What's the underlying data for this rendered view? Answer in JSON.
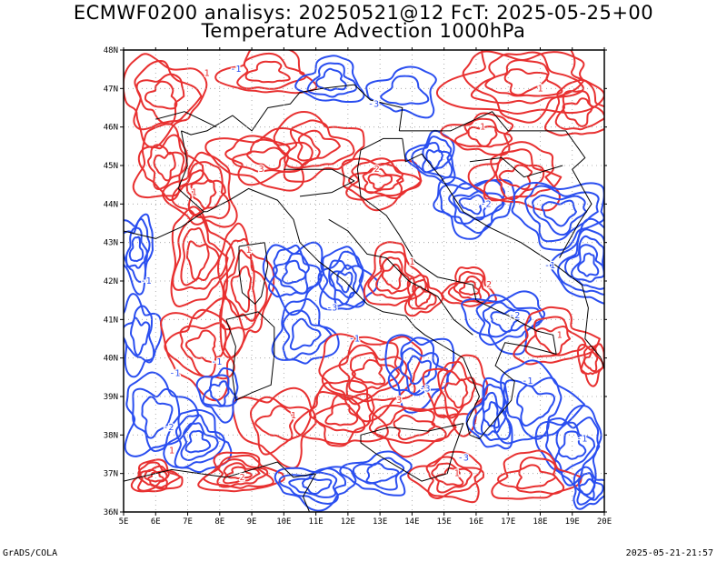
{
  "title": {
    "line1": "ECMWF0200 analisys: 20250521@12 FcT: 2025-05-25+00",
    "line2": "Temperature Advection 1000hPa"
  },
  "footer": {
    "left": "GrADS/COLA",
    "right": "2025-05-21-21:57"
  },
  "map": {
    "lon_labels": [
      "5E",
      "6E",
      "7E",
      "8E",
      "9E",
      "10E",
      "11E",
      "12E",
      "13E",
      "14E",
      "15E",
      "16E",
      "17E",
      "18E",
      "19E",
      "20E"
    ],
    "lat_labels": [
      "48N",
      "47N",
      "46N",
      "45N",
      "44N",
      "43N",
      "42N",
      "41N",
      "40N",
      "39N",
      "38N",
      "37N",
      "36N"
    ],
    "lon_range": [
      5,
      20
    ],
    "lat_range": [
      36,
      48
    ],
    "colors": {
      "warm_advection": "#e83030",
      "cold_advection": "#2a4ef0",
      "coastline": "#000000",
      "grid": "#9a9a9a"
    },
    "contour_labels_cold": [
      "-1",
      "-3",
      "-2",
      "-1",
      "-1",
      "-3",
      "-1",
      "-2",
      "-1",
      "-3",
      "-1",
      "-1",
      "-2",
      "-3",
      "-1"
    ],
    "contour_labels_warm": [
      "1",
      "1",
      "3",
      "1",
      "2",
      "1",
      "1",
      "2",
      "1",
      "3",
      "1",
      "1",
      "2",
      "1",
      "1"
    ]
  }
}
